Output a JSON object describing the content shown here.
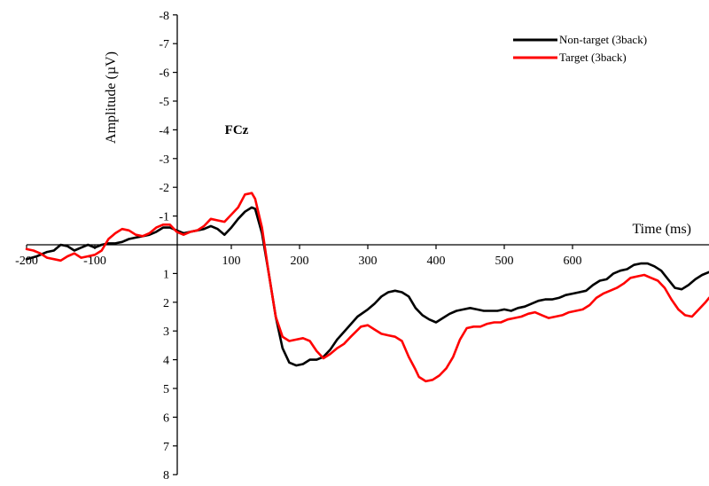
{
  "chart_data": {
    "type": "line",
    "xlabel": "Time (ms)",
    "ylabel": "Amplitude (µV)",
    "annotation": "FCz",
    "xlim": [
      -200,
      800
    ],
    "ylim": [
      8,
      -8
    ],
    "y_inverted": true,
    "xticks": [
      -200,
      -100,
      100,
      200,
      300,
      400,
      500,
      600
    ],
    "yticks": [
      -8,
      -7,
      -6,
      -5,
      -4,
      -3,
      -2,
      -1,
      1,
      2,
      3,
      4,
      5,
      6,
      7,
      8
    ],
    "legend_position": "top-right",
    "series": [
      {
        "name": "Non-target (3back)",
        "color": "#000000",
        "points": [
          [
            -200,
            0.5
          ],
          [
            -185,
            0.4
          ],
          [
            -170,
            0.25
          ],
          [
            -160,
            0.2
          ],
          [
            -150,
            0.0
          ],
          [
            -140,
            0.05
          ],
          [
            -130,
            0.2
          ],
          [
            -120,
            0.1
          ],
          [
            -110,
            0.0
          ],
          [
            -100,
            0.1
          ],
          [
            -90,
            0.0
          ],
          [
            -80,
            -0.05
          ],
          [
            -70,
            -0.05
          ],
          [
            -60,
            -0.1
          ],
          [
            -50,
            -0.2
          ],
          [
            -40,
            -0.25
          ],
          [
            -30,
            -0.3
          ],
          [
            -20,
            -0.35
          ],
          [
            -10,
            -0.45
          ],
          [
            0,
            -0.6
          ],
          [
            10,
            -0.6
          ],
          [
            20,
            -0.5
          ],
          [
            30,
            -0.4
          ],
          [
            40,
            -0.45
          ],
          [
            50,
            -0.5
          ],
          [
            60,
            -0.55
          ],
          [
            70,
            -0.65
          ],
          [
            80,
            -0.55
          ],
          [
            90,
            -0.35
          ],
          [
            100,
            -0.6
          ],
          [
            110,
            -0.9
          ],
          [
            120,
            -1.15
          ],
          [
            130,
            -1.3
          ],
          [
            135,
            -1.25
          ],
          [
            145,
            -0.4
          ],
          [
            155,
            1.0
          ],
          [
            165,
            2.5
          ],
          [
            175,
            3.6
          ],
          [
            185,
            4.1
          ],
          [
            195,
            4.2
          ],
          [
            205,
            4.15
          ],
          [
            215,
            4.0
          ],
          [
            225,
            4.0
          ],
          [
            235,
            3.9
          ],
          [
            245,
            3.65
          ],
          [
            255,
            3.3
          ],
          [
            270,
            2.9
          ],
          [
            285,
            2.5
          ],
          [
            300,
            2.25
          ],
          [
            310,
            2.05
          ],
          [
            320,
            1.8
          ],
          [
            330,
            1.65
          ],
          [
            340,
            1.6
          ],
          [
            350,
            1.65
          ],
          [
            360,
            1.8
          ],
          [
            370,
            2.2
          ],
          [
            380,
            2.45
          ],
          [
            390,
            2.6
          ],
          [
            400,
            2.7
          ],
          [
            410,
            2.55
          ],
          [
            420,
            2.4
          ],
          [
            430,
            2.3
          ],
          [
            440,
            2.25
          ],
          [
            450,
            2.2
          ],
          [
            460,
            2.25
          ],
          [
            470,
            2.3
          ],
          [
            480,
            2.3
          ],
          [
            490,
            2.3
          ],
          [
            500,
            2.25
          ],
          [
            510,
            2.3
          ],
          [
            520,
            2.2
          ],
          [
            530,
            2.15
          ],
          [
            540,
            2.05
          ],
          [
            550,
            1.95
          ],
          [
            560,
            1.9
          ],
          [
            570,
            1.9
          ],
          [
            580,
            1.85
          ],
          [
            590,
            1.75
          ],
          [
            600,
            1.7
          ],
          [
            610,
            1.65
          ],
          [
            620,
            1.6
          ],
          [
            630,
            1.4
          ],
          [
            640,
            1.25
          ],
          [
            650,
            1.2
          ],
          [
            660,
            1.0
          ],
          [
            670,
            0.9
          ],
          [
            680,
            0.85
          ],
          [
            690,
            0.7
          ],
          [
            700,
            0.65
          ],
          [
            710,
            0.65
          ],
          [
            720,
            0.75
          ],
          [
            730,
            0.9
          ],
          [
            740,
            1.2
          ],
          [
            750,
            1.5
          ],
          [
            760,
            1.55
          ],
          [
            770,
            1.4
          ],
          [
            780,
            1.2
          ],
          [
            790,
            1.05
          ],
          [
            800,
            0.95
          ]
        ]
      },
      {
        "name": "Target (3back)",
        "color": "#ff0000",
        "points": [
          [
            -200,
            0.15
          ],
          [
            -190,
            0.2
          ],
          [
            -180,
            0.3
          ],
          [
            -170,
            0.45
          ],
          [
            -160,
            0.5
          ],
          [
            -150,
            0.55
          ],
          [
            -140,
            0.4
          ],
          [
            -130,
            0.3
          ],
          [
            -120,
            0.45
          ],
          [
            -110,
            0.4
          ],
          [
            -100,
            0.35
          ],
          [
            -90,
            0.2
          ],
          [
            -80,
            -0.2
          ],
          [
            -70,
            -0.4
          ],
          [
            -60,
            -0.55
          ],
          [
            -50,
            -0.5
          ],
          [
            -40,
            -0.35
          ],
          [
            -30,
            -0.3
          ],
          [
            -20,
            -0.4
          ],
          [
            -10,
            -0.6
          ],
          [
            0,
            -0.7
          ],
          [
            10,
            -0.7
          ],
          [
            20,
            -0.45
          ],
          [
            30,
            -0.35
          ],
          [
            40,
            -0.45
          ],
          [
            50,
            -0.5
          ],
          [
            60,
            -0.65
          ],
          [
            70,
            -0.9
          ],
          [
            80,
            -0.85
          ],
          [
            90,
            -0.8
          ],
          [
            100,
            -1.05
          ],
          [
            110,
            -1.3
          ],
          [
            120,
            -1.75
          ],
          [
            130,
            -1.8
          ],
          [
            135,
            -1.6
          ],
          [
            145,
            -0.6
          ],
          [
            155,
            1.0
          ],
          [
            165,
            2.5
          ],
          [
            175,
            3.2
          ],
          [
            185,
            3.35
          ],
          [
            195,
            3.3
          ],
          [
            205,
            3.25
          ],
          [
            215,
            3.35
          ],
          [
            225,
            3.7
          ],
          [
            235,
            3.95
          ],
          [
            245,
            3.8
          ],
          [
            255,
            3.6
          ],
          [
            265,
            3.45
          ],
          [
            275,
            3.2
          ],
          [
            290,
            2.85
          ],
          [
            300,
            2.8
          ],
          [
            310,
            2.95
          ],
          [
            320,
            3.1
          ],
          [
            330,
            3.15
          ],
          [
            340,
            3.2
          ],
          [
            350,
            3.35
          ],
          [
            360,
            3.9
          ],
          [
            370,
            4.35
          ],
          [
            375,
            4.6
          ],
          [
            385,
            4.75
          ],
          [
            395,
            4.7
          ],
          [
            405,
            4.55
          ],
          [
            415,
            4.3
          ],
          [
            425,
            3.9
          ],
          [
            435,
            3.3
          ],
          [
            445,
            2.9
          ],
          [
            455,
            2.85
          ],
          [
            465,
            2.85
          ],
          [
            475,
            2.75
          ],
          [
            485,
            2.7
          ],
          [
            495,
            2.7
          ],
          [
            505,
            2.6
          ],
          [
            515,
            2.55
          ],
          [
            525,
            2.5
          ],
          [
            535,
            2.4
          ],
          [
            545,
            2.35
          ],
          [
            555,
            2.45
          ],
          [
            565,
            2.55
          ],
          [
            575,
            2.5
          ],
          [
            585,
            2.45
          ],
          [
            595,
            2.35
          ],
          [
            605,
            2.3
          ],
          [
            615,
            2.25
          ],
          [
            625,
            2.1
          ],
          [
            635,
            1.85
          ],
          [
            645,
            1.7
          ],
          [
            655,
            1.6
          ],
          [
            665,
            1.5
          ],
          [
            675,
            1.35
          ],
          [
            685,
            1.15
          ],
          [
            695,
            1.1
          ],
          [
            705,
            1.05
          ],
          [
            715,
            1.15
          ],
          [
            725,
            1.25
          ],
          [
            735,
            1.5
          ],
          [
            745,
            1.9
          ],
          [
            755,
            2.25
          ],
          [
            765,
            2.45
          ],
          [
            775,
            2.5
          ],
          [
            785,
            2.25
          ],
          [
            795,
            2.0
          ],
          [
            800,
            1.85
          ]
        ]
      }
    ]
  }
}
